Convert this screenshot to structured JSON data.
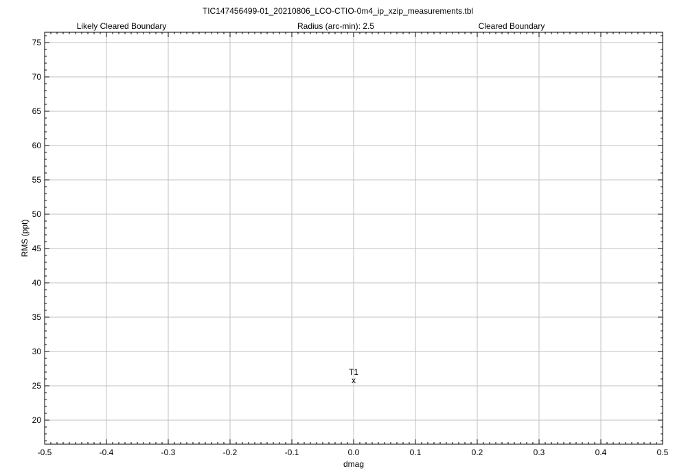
{
  "chart_data": {
    "type": "scatter",
    "title": "TIC147456499-01_20210806_LCO-CTIO-0m4_ip_xzip_measurements.tbl",
    "header_left": "Likely Cleared Boundary",
    "header_center": "Radius (arc-min): 2.5",
    "header_right": "Cleared Boundary",
    "header_left_color": "#ff00ff",
    "header_right_color": "#00ff00",
    "xlabel": "dmag",
    "ylabel": "RMS (ppt)",
    "xlim": [
      -0.5,
      0.5
    ],
    "ylim": [
      16.5,
      76.5
    ],
    "xticks": [
      -0.5,
      -0.4,
      -0.3,
      -0.2,
      -0.1,
      0.0,
      0.1,
      0.2,
      0.3,
      0.4,
      0.5
    ],
    "xtick_labels": [
      "-0.5",
      "-0.4",
      "-0.3",
      "-0.2",
      "-0.1",
      "0.0",
      "0.1",
      "0.2",
      "0.3",
      "0.4",
      "0.5"
    ],
    "yticks": [
      20,
      25,
      30,
      35,
      40,
      45,
      50,
      55,
      60,
      65,
      70,
      75
    ],
    "ytick_labels": [
      "20",
      "25",
      "30",
      "35",
      "40",
      "45",
      "50",
      "55",
      "60",
      "65",
      "70",
      "75"
    ],
    "grid": true,
    "points": [
      {
        "label": "T1",
        "marker": "x",
        "x": 0.0,
        "y": 25.8
      }
    ]
  }
}
